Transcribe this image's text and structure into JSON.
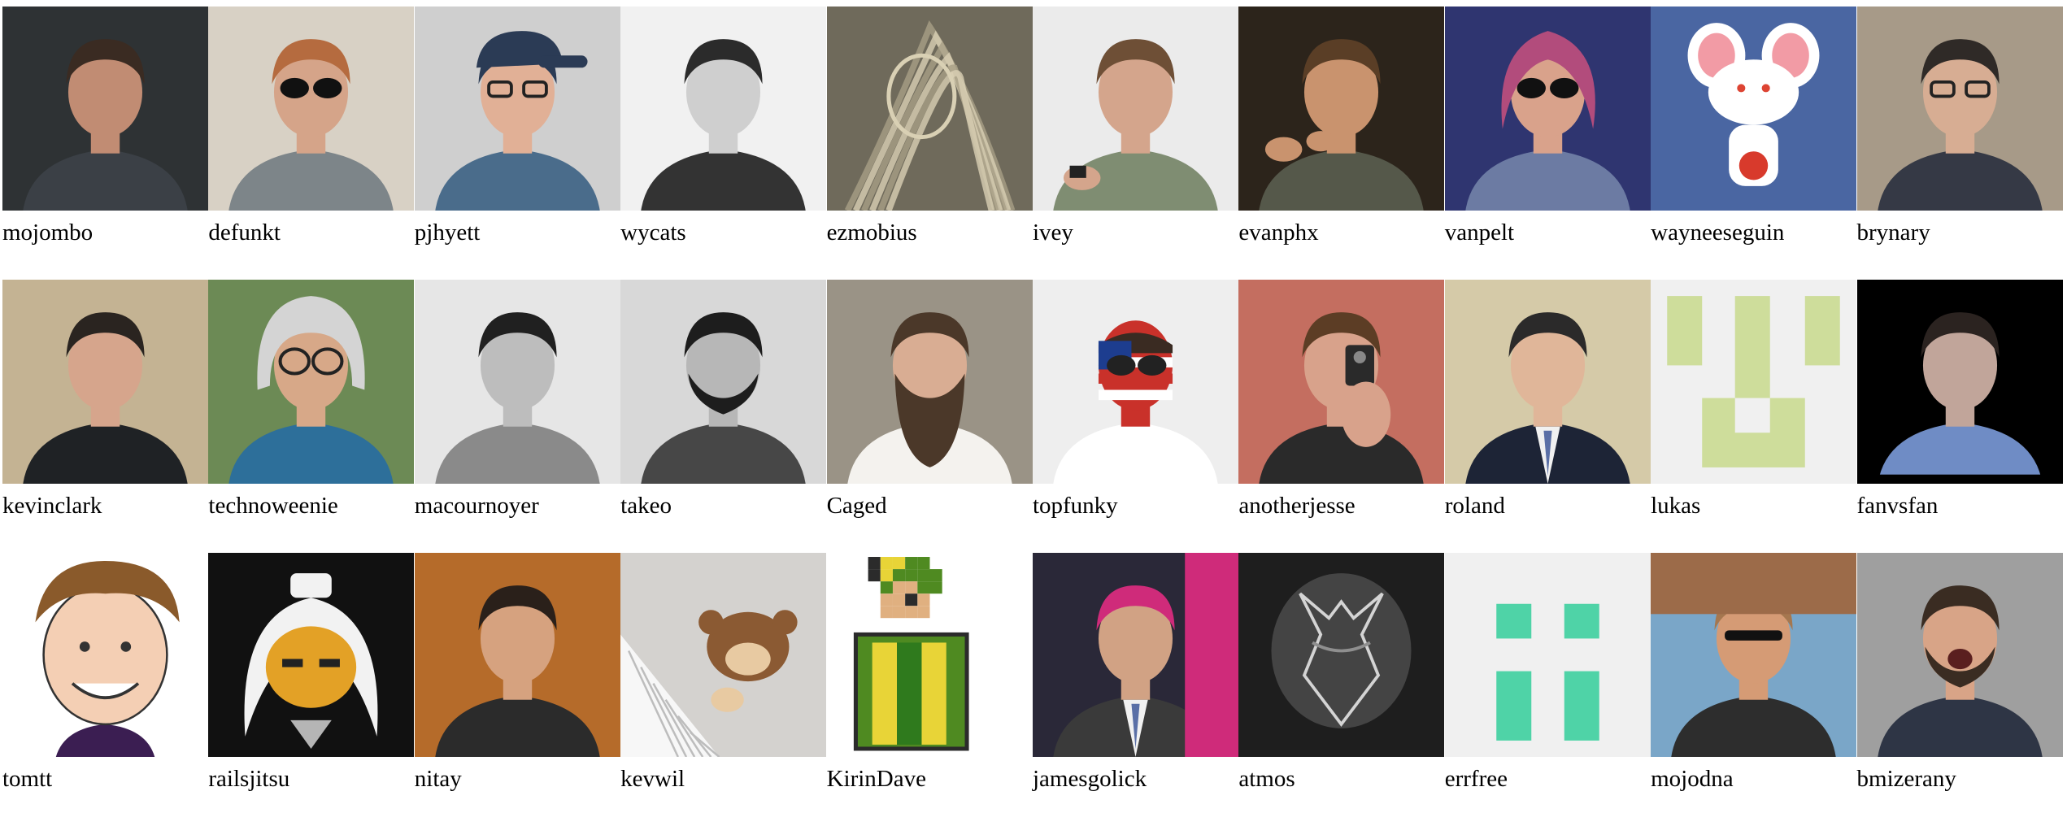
{
  "users": [
    {
      "login": "mojombo",
      "avatar": "person",
      "colors": [
        "#2e3234",
        "#c18c73",
        "#3a2b22",
        "#3b4046"
      ]
    },
    {
      "login": "defunkt",
      "avatar": "person-sunglasses",
      "colors": [
        "#d8d1c5",
        "#d5a489",
        "#b56b3f",
        "#7d8589"
      ]
    },
    {
      "login": "pjhyett",
      "avatar": "person-cap",
      "colors": [
        "#cfcfcf",
        "#e1b096",
        "#2b3b55",
        "#4a6c8b"
      ]
    },
    {
      "login": "wycats",
      "avatar": "person",
      "colors": [
        "#f1f1f1",
        "#cfcfcf",
        "#2b2b2b",
        "#333333"
      ]
    },
    {
      "login": "ezmobius",
      "avatar": "abstract",
      "colors": [
        "#6f6a5b",
        "#d9d0b4",
        "#3f3b30",
        "#a79f86"
      ]
    },
    {
      "login": "ivey",
      "avatar": "person-phone",
      "colors": [
        "#ebebeb",
        "#d4a58c",
        "#6e4f36",
        "#7f8d72"
      ]
    },
    {
      "login": "evanphx",
      "avatar": "person-gesture",
      "colors": [
        "#2c241b",
        "#c9936e",
        "#5a3e26",
        "#55584a"
      ]
    },
    {
      "login": "vanpelt",
      "avatar": "person-scarf",
      "colors": [
        "#2f3570",
        "#d9a28b",
        "#b24c7c",
        "#6c7ba3"
      ]
    },
    {
      "login": "wayneeseguin",
      "avatar": "cartoon-mouse",
      "colors": [
        "#4a66a2",
        "#ffffff",
        "#f29ba5",
        "#d83a2c"
      ]
    },
    {
      "login": "brynary",
      "avatar": "person-glasses",
      "colors": [
        "#a79a88",
        "#d7ad93",
        "#2f2a27",
        "#353945"
      ]
    },
    {
      "login": "kevinclark",
      "avatar": "person",
      "colors": [
        "#c4b393",
        "#d6a58c",
        "#2a2420",
        "#1f2225"
      ]
    },
    {
      "login": "technoweenie",
      "avatar": "person-helmet",
      "colors": [
        "#6c8a55",
        "#d7a888",
        "#d4d4d4",
        "#2d6f9a"
      ]
    },
    {
      "login": "macournoyer",
      "avatar": "person",
      "colors": [
        "#e6e6e6",
        "#bdbdbd",
        "#202020",
        "#8a8a8a"
      ]
    },
    {
      "login": "takeo",
      "avatar": "person-beard",
      "colors": [
        "#d8d8d8",
        "#b7b7b7",
        "#1d1d1d",
        "#474747"
      ]
    },
    {
      "login": "Caged",
      "avatar": "person-longbeard",
      "colors": [
        "#9a9386",
        "#d9ad93",
        "#4b3829",
        "#f4f2ee"
      ]
    },
    {
      "login": "topfunky",
      "avatar": "person-flagface",
      "colors": [
        "#eeeeee",
        "#c9312a",
        "#1d3d8f",
        "#ffffff"
      ]
    },
    {
      "login": "anotherjesse",
      "avatar": "person-camera",
      "colors": [
        "#c46e60",
        "#d8a28b",
        "#5c3d25",
        "#2a2a2a"
      ]
    },
    {
      "login": "roland",
      "avatar": "person-suit",
      "colors": [
        "#d5caa8",
        "#e0b699",
        "#2b2a2a",
        "#1d2436"
      ]
    },
    {
      "login": "lukas",
      "avatar": "identicon-a",
      "colors": [
        "#f0f0f0",
        "#cedd9b"
      ]
    },
    {
      "login": "fanvsfan",
      "avatar": "person-framed",
      "colors": [
        "#000000",
        "#c1a59a",
        "#2b2320",
        "#6f8cc5"
      ]
    },
    {
      "login": "tomtt",
      "avatar": "caricature",
      "colors": [
        "#ffffff",
        "#f4cfb4",
        "#8a5a2b",
        "#3b1e52"
      ]
    },
    {
      "login": "railsjitsu",
      "avatar": "cartoon-ninja",
      "colors": [
        "#111111",
        "#f2f2f2",
        "#e3a126",
        "#b5b5b5"
      ]
    },
    {
      "login": "nitay",
      "avatar": "person",
      "colors": [
        "#b56b2a",
        "#d6a27f",
        "#2a201a",
        "#2b2b2b"
      ]
    },
    {
      "login": "kevwil",
      "avatar": "toy-monkey",
      "colors": [
        "#d4d2cf",
        "#8b5a33",
        "#e8caa2",
        "#f7f7f7"
      ]
    },
    {
      "login": "KirinDave",
      "avatar": "pixel-sprite",
      "colors": [
        "#ffffff",
        "#4f8a21",
        "#e8d437",
        "#2b2b2b"
      ]
    },
    {
      "login": "jamesgolick",
      "avatar": "person-stage",
      "colors": [
        "#2a2838",
        "#d1a284",
        "#cf2b7a",
        "#3a3a3a"
      ]
    },
    {
      "login": "atmos",
      "avatar": "sketch",
      "colors": [
        "#1e1e1e",
        "#8f8f8f",
        "#d4d4d4",
        "#444444"
      ]
    },
    {
      "login": "errfree",
      "avatar": "identicon-b",
      "colors": [
        "#f0f0f0",
        "#4fd3a7"
      ]
    },
    {
      "login": "mojodna",
      "avatar": "person-outdoor",
      "colors": [
        "#7aa6c8",
        "#d59b75",
        "#a5774f",
        "#2d2d2d"
      ]
    },
    {
      "login": "bmizerany",
      "avatar": "person-shout",
      "colors": [
        "#9f9f9f",
        "#d8a487",
        "#3a2c22",
        "#2e3545"
      ]
    }
  ]
}
